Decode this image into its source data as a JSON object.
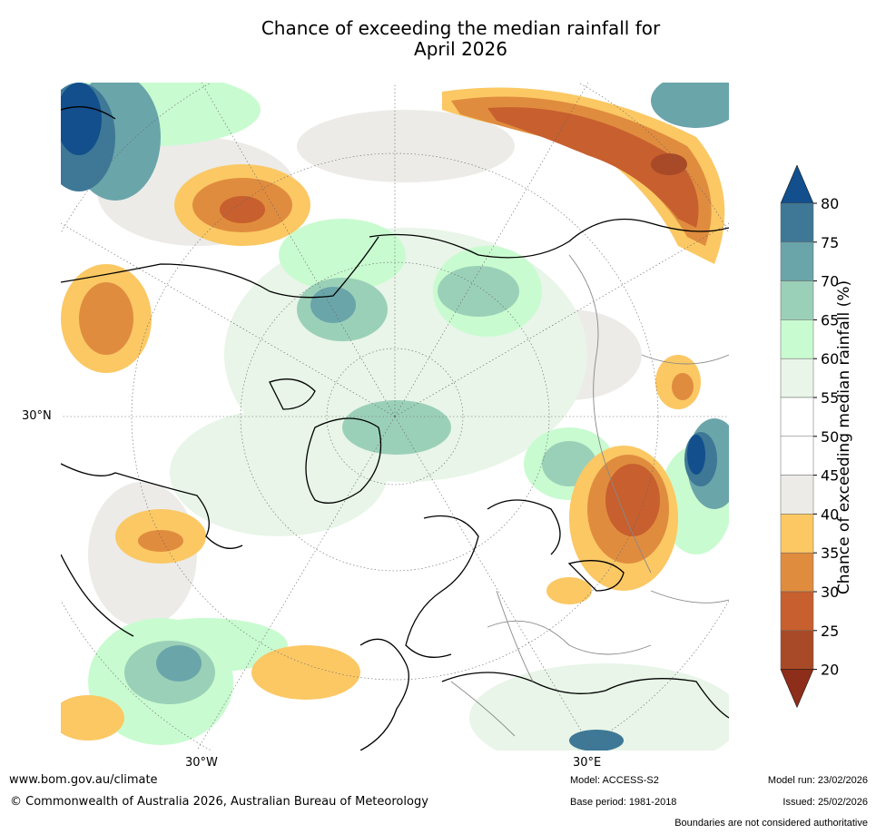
{
  "title": {
    "line1": "Chance of exceeding the median rainfall for",
    "line2": "April 2026"
  },
  "map": {
    "projection": "polar-stereographic-north",
    "longitude_labels": [
      "30°W",
      "30°E"
    ],
    "latitude_labels": [
      "30°N"
    ]
  },
  "legend": {
    "label": "Chance of exceeding median rainfall (%)",
    "ticks": [
      "80",
      "75",
      "70",
      "65",
      "60",
      "55",
      "50",
      "45",
      "40",
      "35",
      "30",
      "25",
      "20"
    ],
    "colors": {
      "above_80": "#124f8c",
      "75_80": "#3e7896",
      "70_75": "#6aa5aa",
      "65_70": "#9bd0b8",
      "60_65": "#c9fbd0",
      "55_60": "#e8f5e8",
      "50_55": "#ffffff",
      "45_50": "#ffffff",
      "40_45": "#ecebe7",
      "35_40": "#fbc864",
      "30_35": "#e08c3e",
      "25_30": "#c75f2e",
      "20_25": "#a84a27",
      "below_20": "#8d2e1a"
    }
  },
  "footer": {
    "website": "www.bom.gov.au/climate",
    "copyright": "© Commonwealth of Australia 2026, Australian Bureau of Meteorology",
    "model": "Model: ACCESS-S2",
    "base_period": "Base period: 1981-2018",
    "model_run": "Model run: 23/02/2026",
    "issued": "Issued: 25/02/2026",
    "disclaimer": "Boundaries are not considered authoritative"
  }
}
